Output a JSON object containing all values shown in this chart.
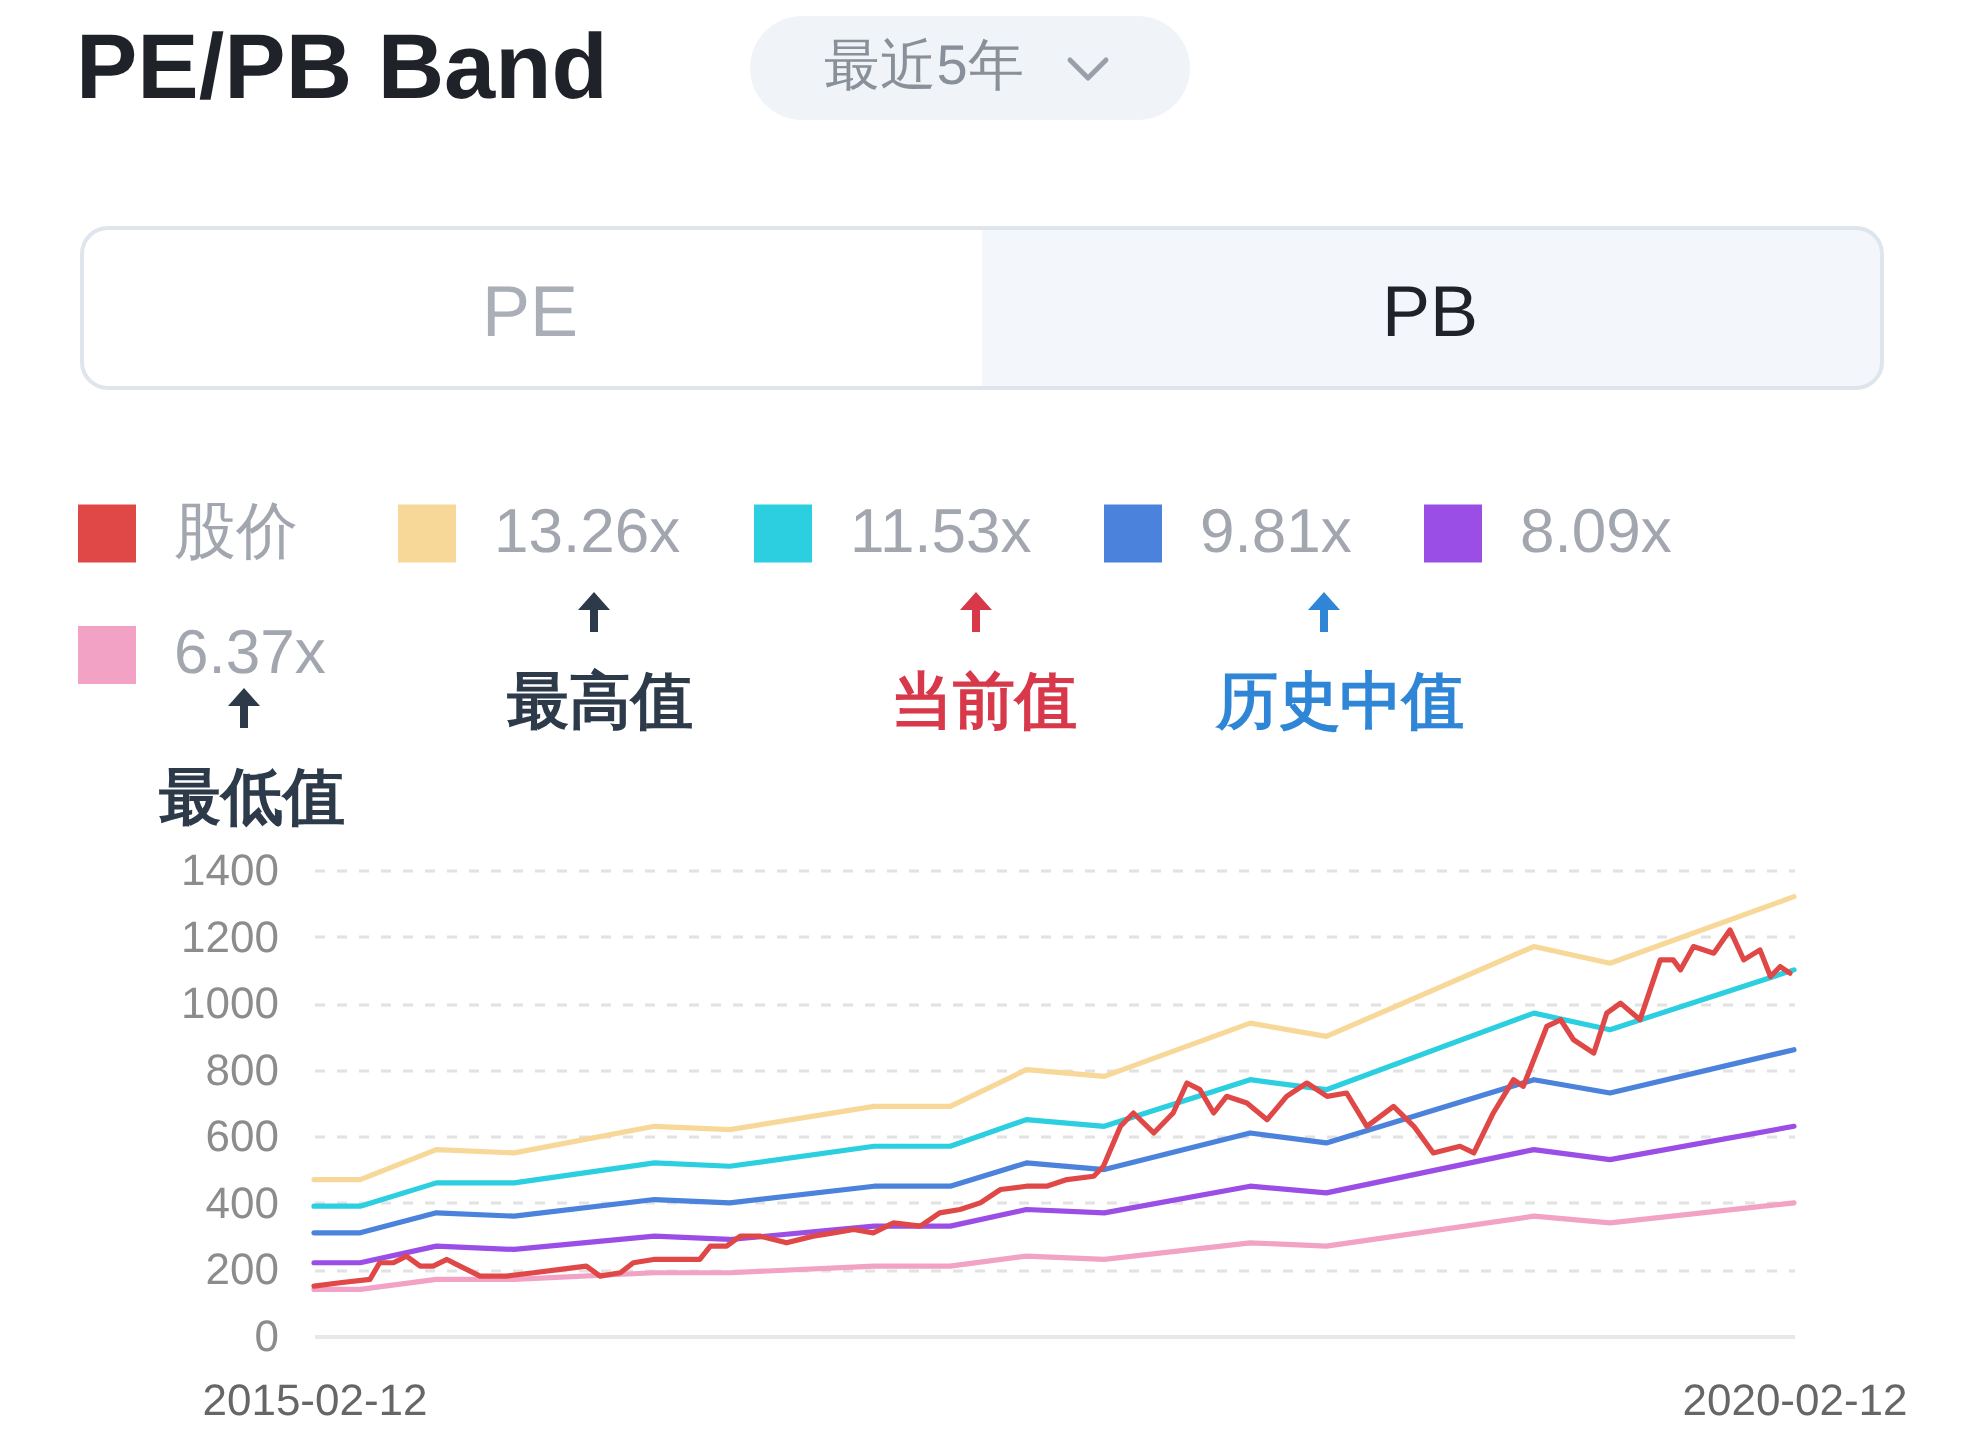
{
  "chart_data": {
    "type": "line",
    "title": "PE/PB Band",
    "annotations": [
      "最近5年",
      "PE",
      "PB",
      "最高值",
      "当前值",
      "历史中值",
      "最低值"
    ],
    "x": [
      "2015-02-12",
      "2015-04-10",
      "2015-07-13",
      "2015-10-17",
      "2016-04-07",
      "2016-07-09",
      "2017-01-03",
      "2017-04-07",
      "2017-07-10",
      "2017-10-14",
      "2018-04-12",
      "2018-07-15",
      "2019-03-28",
      "2019-06-30",
      "2020-02-12"
    ],
    "series": [
      {
        "name": "股价",
        "color": "#e04848",
        "x": [
          "2015-02-12",
          "2015-03-16",
          "2015-04-22",
          "2015-05-04",
          "2015-05-21",
          "2015-06-06",
          "2015-06-23",
          "2015-07-09",
          "2015-07-26",
          "2015-08-11",
          "2015-09-05",
          "2015-10-08",
          "2015-11-10",
          "2015-12-13",
          "2016-01-14",
          "2016-01-31",
          "2016-02-25",
          "2016-03-12",
          "2016-04-06",
          "2016-05-09",
          "2016-06-02",
          "2016-06-15",
          "2016-07-05",
          "2016-07-22",
          "2016-08-15",
          "2016-09-17",
          "2016-10-20",
          "2016-11-14",
          "2016-12-09",
          "2017-01-02",
          "2017-01-27",
          "2017-03-01",
          "2017-03-25",
          "2017-04-19",
          "2017-05-14",
          "2017-06-08",
          "2017-07-10",
          "2017-08-04",
          "2017-08-29",
          "2017-10-01",
          "2017-10-13",
          "2017-11-03",
          "2017-11-19",
          "2017-12-14",
          "2018-01-07",
          "2018-01-24",
          "2018-02-09",
          "2018-02-26",
          "2018-03-14",
          "2018-04-08",
          "2018-05-03",
          "2018-05-27",
          "2018-06-21",
          "2018-07-16",
          "2018-08-09",
          "2018-09-03",
          "2018-10-06",
          "2018-10-31",
          "2018-11-24",
          "2018-12-27",
          "2019-01-13",
          "2019-02-06",
          "2019-03-03",
          "2019-03-15",
          "2019-04-13",
          "2019-04-30",
          "2019-05-16",
          "2019-06-10",
          "2019-06-26",
          "2019-07-13",
          "2019-08-06",
          "2019-08-31",
          "2019-09-16",
          "2019-09-25",
          "2019-10-11",
          "2019-11-05",
          "2019-11-25",
          "2019-12-12",
          "2020-01-01",
          "2020-01-14",
          "2020-01-26",
          "2020-02-07"
        ],
        "values": [
          150,
          160,
          170,
          220,
          220,
          240,
          210,
          210,
          230,
          210,
          180,
          180,
          190,
          200,
          210,
          180,
          190,
          220,
          230,
          230,
          230,
          270,
          270,
          300,
          300,
          280,
          300,
          310,
          320,
          310,
          340,
          330,
          370,
          380,
          400,
          440,
          450,
          450,
          470,
          480,
          510,
          630,
          670,
          610,
          670,
          760,
          740,
          670,
          720,
          700,
          650,
          720,
          760,
          720,
          730,
          630,
          690,
          630,
          550,
          570,
          550,
          670,
          770,
          750,
          930,
          950,
          890,
          850,
          970,
          1000,
          950,
          1130,
          1130,
          1100,
          1170,
          1150,
          1220,
          1130,
          1160,
          1080,
          1110,
          1090
        ]
      },
      {
        "name": "13.26x",
        "color": "#f8d898",
        "values": [
          470,
          470,
          560,
          550,
          630,
          620,
          690,
          690,
          800,
          780,
          940,
          900,
          1170,
          1120,
          1320
        ]
      },
      {
        "name": "11.53x",
        "color": "#2ccfe0",
        "values": [
          390,
          390,
          460,
          460,
          520,
          510,
          570,
          570,
          650,
          630,
          770,
          740,
          970,
          920,
          1100
        ]
      },
      {
        "name": "9.81x",
        "color": "#4a82dc",
        "values": [
          310,
          310,
          370,
          360,
          410,
          400,
          450,
          450,
          520,
          500,
          610,
          580,
          770,
          730,
          860
        ]
      },
      {
        "name": "8.09x",
        "color": "#9a4ee6",
        "values": [
          220,
          220,
          270,
          260,
          300,
          290,
          330,
          330,
          380,
          370,
          450,
          430,
          560,
          530,
          630
        ]
      },
      {
        "name": "6.37x",
        "color": "#f2a2c4",
        "values": [
          140,
          140,
          170,
          170,
          190,
          190,
          210,
          210,
          240,
          230,
          280,
          270,
          360,
          340,
          400
        ]
      }
    ],
    "xlim": [
      "2015-02-12",
      "2020-02-12"
    ],
    "xticks": [
      "2015-02-12",
      "2020-02-12"
    ],
    "ylim": [
      0,
      1400
    ],
    "yticks": [
      0,
      200,
      400,
      600,
      800,
      1000,
      1200,
      1400
    ],
    "grid": "y",
    "legend": "top"
  }
}
